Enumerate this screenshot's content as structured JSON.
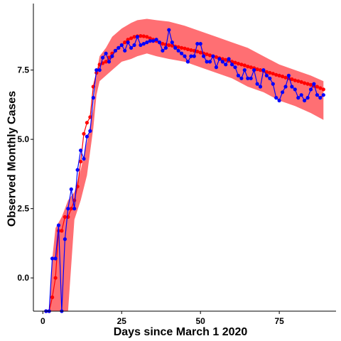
{
  "chart_data": {
    "type": "line",
    "xlabel": "Days since March 1 2020",
    "ylabel": "Observed Monthly Cases",
    "xlim": [
      -3,
      93
    ],
    "ylim": [
      -1.2,
      9.9
    ],
    "xticks": [
      0,
      25,
      50,
      75
    ],
    "yticks": [
      0.0,
      2.5,
      5.0,
      7.5
    ],
    "xtick_labels": [
      "0",
      "25",
      "50",
      "75"
    ],
    "ytick_labels": [
      "0.0",
      "2.5",
      "5.0",
      "7.5"
    ],
    "grid": false,
    "legend": "none",
    "colors": {
      "band": "#ff6f73",
      "fitted": "#ff0000",
      "observed": "#0000ff"
    },
    "series": [
      {
        "role": "band",
        "x": [
          1,
          2,
          3,
          4,
          5,
          6,
          7,
          8,
          10,
          12,
          14,
          16,
          17,
          18,
          20,
          22,
          25,
          28,
          30,
          33,
          36,
          40,
          45,
          50,
          55,
          60,
          65,
          70,
          75,
          80,
          85,
          89
        ],
        "lower": [
          -1.2,
          -1.2,
          -1.2,
          -1.2,
          -1.2,
          -1.2,
          -1.2,
          -1.2,
          2.1,
          2.8,
          3.7,
          5.4,
          6.6,
          7.1,
          7.3,
          7.5,
          7.8,
          7.9,
          8.0,
          8.1,
          8.0,
          7.9,
          7.8,
          7.6,
          7.4,
          7.2,
          6.9,
          6.7,
          6.4,
          6.2,
          5.95,
          5.7
        ],
        "upper": [
          -1.2,
          -1.2,
          0.7,
          1.8,
          2.0,
          2.2,
          2.5,
          2.8,
          3.1,
          3.9,
          4.9,
          6.1,
          7.4,
          8.0,
          8.3,
          8.7,
          9.0,
          9.2,
          9.3,
          9.35,
          9.3,
          9.25,
          9.1,
          8.9,
          8.7,
          8.5,
          8.3,
          8.0,
          7.7,
          7.5,
          7.3,
          7.1
        ]
      },
      {
        "role": "fitted",
        "x": [
          1,
          2,
          3,
          4,
          5,
          6,
          7,
          8,
          9,
          10,
          11,
          12,
          13,
          14,
          15,
          16,
          17,
          18,
          19,
          20,
          21,
          22,
          23,
          24,
          25,
          26,
          27,
          28,
          29,
          30,
          31,
          32,
          33,
          34,
          35,
          36,
          37,
          38,
          39,
          40,
          41,
          42,
          43,
          44,
          45,
          46,
          47,
          48,
          49,
          50,
          51,
          52,
          53,
          54,
          55,
          56,
          57,
          58,
          59,
          60,
          61,
          62,
          63,
          64,
          65,
          66,
          67,
          68,
          69,
          70,
          71,
          72,
          73,
          74,
          75,
          76,
          77,
          78,
          79,
          80,
          81,
          82,
          83,
          84,
          85,
          86,
          87,
          88,
          89
        ],
        "y": [
          -1.2,
          -1.2,
          -0.7,
          0.0,
          1.7,
          1.7,
          2.2,
          2.2,
          2.5,
          2.8,
          3.3,
          4.2,
          5.2,
          5.6,
          5.8,
          6.9,
          7.4,
          7.7,
          7.75,
          7.8,
          7.95,
          8.1,
          8.2,
          8.3,
          8.4,
          8.5,
          8.6,
          8.65,
          8.7,
          8.72,
          8.73,
          8.72,
          8.7,
          8.65,
          8.6,
          8.55,
          8.5,
          8.45,
          8.42,
          8.4,
          8.38,
          8.35,
          8.33,
          8.3,
          8.28,
          8.25,
          8.22,
          8.2,
          8.17,
          8.13,
          8.1,
          8.07,
          8.03,
          8.0,
          7.97,
          7.93,
          7.9,
          7.87,
          7.83,
          7.8,
          7.77,
          7.73,
          7.7,
          7.67,
          7.63,
          7.6,
          7.57,
          7.53,
          7.5,
          7.47,
          7.43,
          7.4,
          7.37,
          7.33,
          7.3,
          7.27,
          7.23,
          7.2,
          7.17,
          7.13,
          7.1,
          7.07,
          7.03,
          7.0,
          6.97,
          6.93,
          6.9,
          6.85,
          6.8
        ]
      },
      {
        "role": "observed",
        "x": [
          1,
          2,
          3,
          4,
          5,
          6,
          7,
          8,
          9,
          10,
          11,
          12,
          13,
          14,
          15,
          16,
          17,
          18,
          19,
          20,
          21,
          22,
          23,
          24,
          25,
          26,
          27,
          28,
          29,
          30,
          31,
          32,
          33,
          34,
          35,
          36,
          37,
          38,
          39,
          40,
          41,
          42,
          43,
          44,
          45,
          46,
          47,
          48,
          49,
          50,
          51,
          52,
          53,
          54,
          55,
          56,
          57,
          58,
          59,
          60,
          61,
          62,
          63,
          64,
          65,
          66,
          67,
          68,
          69,
          70,
          71,
          72,
          73,
          74,
          75,
          76,
          77,
          78,
          79,
          80,
          81,
          82,
          83,
          84,
          85,
          86,
          87,
          88,
          89
        ],
        "y": [
          -1.2,
          -1.2,
          0.7,
          0.7,
          1.9,
          -1.2,
          1.4,
          2.5,
          3.2,
          2.5,
          3.9,
          4.6,
          4.3,
          5.1,
          5.3,
          6.5,
          7.5,
          7.5,
          7.95,
          8.1,
          7.8,
          8.0,
          8.2,
          8.3,
          8.4,
          8.2,
          8.5,
          8.3,
          8.4,
          8.7,
          8.4,
          8.45,
          8.5,
          8.55,
          8.55,
          8.6,
          8.5,
          8.2,
          8.3,
          8.95,
          8.5,
          8.3,
          8.2,
          8.1,
          8.0,
          7.8,
          8.0,
          8.0,
          8.45,
          8.45,
          8.0,
          7.8,
          7.8,
          8.0,
          7.6,
          7.9,
          7.8,
          7.7,
          7.9,
          7.7,
          7.6,
          7.3,
          7.2,
          7.5,
          7.2,
          7.2,
          7.5,
          7.0,
          6.9,
          7.5,
          7.3,
          7.2,
          7.0,
          6.5,
          6.4,
          6.7,
          6.9,
          7.3,
          6.9,
          6.8,
          6.5,
          6.6,
          6.4,
          6.5,
          6.8,
          7.0,
          6.6,
          6.5,
          6.6
        ]
      }
    ]
  }
}
